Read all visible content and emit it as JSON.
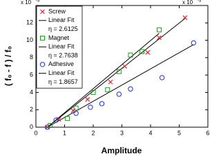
{
  "chart_data": {
    "type": "scatter",
    "xlabel": "Amplitude",
    "ylabel": "( f₀ - f ) / f₀",
    "x_multiplier": {
      "base": "x 10",
      "exponent": "-3"
    },
    "y_multiplier": {
      "base": "x 10",
      "exponent": "-3"
    },
    "xlim": [
      0,
      6
    ],
    "xticks": [
      0,
      1,
      2,
      3,
      4,
      5,
      6
    ],
    "ylim": [
      0,
      14
    ],
    "yticks": [
      0,
      2,
      4,
      6,
      8,
      10,
      12
    ],
    "series": [
      {
        "name": "Screw",
        "marker": "x",
        "color": "#e8202a",
        "x": [
          0.4,
          0.8,
          1.3,
          1.8,
          2.6,
          3.1,
          3.9,
          4.3,
          5.2
        ],
        "values": [
          0,
          0.9,
          1.9,
          3.2,
          5.2,
          7.0,
          8.6,
          10.3,
          12.6
        ]
      },
      {
        "name": "Linear Fit",
        "marker": "line",
        "color": "#000000",
        "x": [
          0.4,
          5.2
        ],
        "values": [
          0,
          12.5
        ],
        "label": "η = 2.6125"
      },
      {
        "name": "Magnet",
        "marker": "square",
        "color": "#1a9a1a",
        "x": [
          0.5,
          1.1,
          1.4,
          2.0,
          2.5,
          2.9,
          3.3,
          3.7,
          4.3
        ],
        "values": [
          0.2,
          1.0,
          2.2,
          4.0,
          4.3,
          6.4,
          8.3,
          8.7,
          11.2
        ]
      },
      {
        "name": "Linear Fit",
        "marker": "line",
        "color": "#000000",
        "x": [
          0.4,
          4.3
        ],
        "values": [
          0,
          10.8
        ],
        "label": "η = 2.7638"
      },
      {
        "name": "Adhesive",
        "marker": "circle",
        "color": "#1a2fd6",
        "x": [
          0.4,
          0.7,
          1.4,
          1.9,
          2.3,
          2.9,
          3.3,
          4.4,
          5.5
        ],
        "values": [
          0,
          0.8,
          1.6,
          2.3,
          2.7,
          3.8,
          4.4,
          5.7,
          9.7
        ]
      },
      {
        "name": "Linear Fit",
        "marker": "line",
        "color": "#000000",
        "x": [
          0.4,
          5.5
        ],
        "values": [
          0,
          9.5
        ],
        "label": "η = 1.8657"
      }
    ]
  }
}
